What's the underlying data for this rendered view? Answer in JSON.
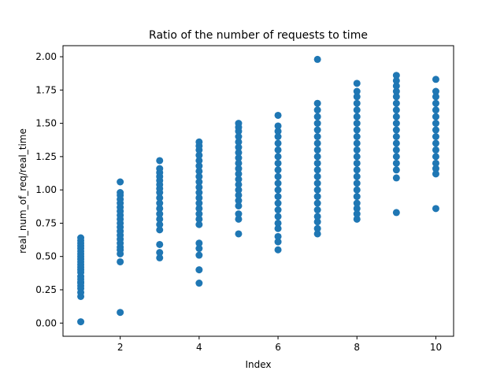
{
  "chart_data": {
    "type": "scatter",
    "title": "Ratio of the number of requests to time",
    "xlabel": "Index",
    "ylabel": "real_num_of_req/real_time",
    "xlim": [
      0.55,
      10.45
    ],
    "ylim": [
      -0.099,
      2.083
    ],
    "xticks": [
      2,
      4,
      6,
      8,
      10
    ],
    "yticks": [
      "0.00",
      "0.25",
      "0.50",
      "0.75",
      "1.00",
      "1.25",
      "1.50",
      "1.75",
      "2.00"
    ],
    "grid": false,
    "marker_color": "#1f77b4",
    "series": [
      {
        "points": [
          [
            1,
            0.01
          ],
          [
            1,
            0.2
          ],
          [
            1,
            0.23
          ],
          [
            1,
            0.26
          ],
          [
            1,
            0.28
          ],
          [
            1,
            0.3
          ],
          [
            1,
            0.31
          ],
          [
            1,
            0.33
          ],
          [
            1,
            0.35
          ],
          [
            1,
            0.38
          ],
          [
            1,
            0.4
          ],
          [
            1,
            0.42
          ],
          [
            1,
            0.44
          ],
          [
            1,
            0.46
          ],
          [
            1,
            0.48
          ],
          [
            1,
            0.5
          ],
          [
            1,
            0.52
          ],
          [
            1,
            0.54
          ],
          [
            1,
            0.56
          ],
          [
            1,
            0.58
          ],
          [
            1,
            0.6
          ],
          [
            1,
            0.62
          ],
          [
            1,
            0.64
          ],
          [
            2,
            0.08
          ],
          [
            2,
            0.46
          ],
          [
            2,
            0.52
          ],
          [
            2,
            0.55
          ],
          [
            2,
            0.57
          ],
          [
            2,
            0.6
          ],
          [
            2,
            0.63
          ],
          [
            2,
            0.66
          ],
          [
            2,
            0.69
          ],
          [
            2,
            0.72
          ],
          [
            2,
            0.75
          ],
          [
            2,
            0.78
          ],
          [
            2,
            0.81
          ],
          [
            2,
            0.84
          ],
          [
            2,
            0.87
          ],
          [
            2,
            0.9
          ],
          [
            2,
            0.93
          ],
          [
            2,
            0.96
          ],
          [
            2,
            0.98
          ],
          [
            2,
            1.06
          ],
          [
            3,
            0.49
          ],
          [
            3,
            0.53
          ],
          [
            3,
            0.59
          ],
          [
            3,
            0.7
          ],
          [
            3,
            0.74
          ],
          [
            3,
            0.78
          ],
          [
            3,
            0.82
          ],
          [
            3,
            0.86
          ],
          [
            3,
            0.9
          ],
          [
            3,
            0.94
          ],
          [
            3,
            0.98
          ],
          [
            3,
            1.01
          ],
          [
            3,
            1.04
          ],
          [
            3,
            1.07
          ],
          [
            3,
            1.1
          ],
          [
            3,
            1.13
          ],
          [
            3,
            1.16
          ],
          [
            3,
            1.22
          ],
          [
            4,
            0.3
          ],
          [
            4,
            0.4
          ],
          [
            4,
            0.51
          ],
          [
            4,
            0.56
          ],
          [
            4,
            0.6
          ],
          [
            4,
            0.74
          ],
          [
            4,
            0.78
          ],
          [
            4,
            0.82
          ],
          [
            4,
            0.86
          ],
          [
            4,
            0.9
          ],
          [
            4,
            0.94
          ],
          [
            4,
            0.98
          ],
          [
            4,
            1.02
          ],
          [
            4,
            1.06
          ],
          [
            4,
            1.1
          ],
          [
            4,
            1.14
          ],
          [
            4,
            1.18
          ],
          [
            4,
            1.22
          ],
          [
            4,
            1.26
          ],
          [
            4,
            1.3
          ],
          [
            4,
            1.33
          ],
          [
            4,
            1.36
          ],
          [
            5,
            0.67
          ],
          [
            5,
            0.78
          ],
          [
            5,
            0.82
          ],
          [
            5,
            0.88
          ],
          [
            5,
            0.92
          ],
          [
            5,
            0.96
          ],
          [
            5,
            1.0
          ],
          [
            5,
            1.04
          ],
          [
            5,
            1.08
          ],
          [
            5,
            1.12
          ],
          [
            5,
            1.16
          ],
          [
            5,
            1.2
          ],
          [
            5,
            1.24
          ],
          [
            5,
            1.28
          ],
          [
            5,
            1.32
          ],
          [
            5,
            1.36
          ],
          [
            5,
            1.4
          ],
          [
            5,
            1.44
          ],
          [
            5,
            1.47
          ],
          [
            5,
            1.5
          ],
          [
            6,
            0.55
          ],
          [
            6,
            0.61
          ],
          [
            6,
            0.65
          ],
          [
            6,
            0.71
          ],
          [
            6,
            0.75
          ],
          [
            6,
            0.8
          ],
          [
            6,
            0.85
          ],
          [
            6,
            0.9
          ],
          [
            6,
            0.95
          ],
          [
            6,
            1.0
          ],
          [
            6,
            1.05
          ],
          [
            6,
            1.1
          ],
          [
            6,
            1.15
          ],
          [
            6,
            1.2
          ],
          [
            6,
            1.25
          ],
          [
            6,
            1.3
          ],
          [
            6,
            1.35
          ],
          [
            6,
            1.4
          ],
          [
            6,
            1.44
          ],
          [
            6,
            1.48
          ],
          [
            6,
            1.56
          ],
          [
            7,
            0.67
          ],
          [
            7,
            0.71
          ],
          [
            7,
            0.76
          ],
          [
            7,
            0.8
          ],
          [
            7,
            0.85
          ],
          [
            7,
            0.9
          ],
          [
            7,
            0.95
          ],
          [
            7,
            1.0
          ],
          [
            7,
            1.05
          ],
          [
            7,
            1.1
          ],
          [
            7,
            1.15
          ],
          [
            7,
            1.2
          ],
          [
            7,
            1.25
          ],
          [
            7,
            1.3
          ],
          [
            7,
            1.35
          ],
          [
            7,
            1.4
          ],
          [
            7,
            1.45
          ],
          [
            7,
            1.5
          ],
          [
            7,
            1.55
          ],
          [
            7,
            1.6
          ],
          [
            7,
            1.65
          ],
          [
            7,
            1.98
          ],
          [
            8,
            0.78
          ],
          [
            8,
            0.82
          ],
          [
            8,
            0.86
          ],
          [
            8,
            0.9
          ],
          [
            8,
            0.95
          ],
          [
            8,
            1.0
          ],
          [
            8,
            1.05
          ],
          [
            8,
            1.1
          ],
          [
            8,
            1.15
          ],
          [
            8,
            1.2
          ],
          [
            8,
            1.25
          ],
          [
            8,
            1.3
          ],
          [
            8,
            1.35
          ],
          [
            8,
            1.4
          ],
          [
            8,
            1.45
          ],
          [
            8,
            1.5
          ],
          [
            8,
            1.55
          ],
          [
            8,
            1.6
          ],
          [
            8,
            1.65
          ],
          [
            8,
            1.7
          ],
          [
            8,
            1.74
          ],
          [
            8,
            1.8
          ],
          [
            9,
            0.83
          ],
          [
            9,
            1.09
          ],
          [
            9,
            1.15
          ],
          [
            9,
            1.2
          ],
          [
            9,
            1.25
          ],
          [
            9,
            1.3
          ],
          [
            9,
            1.35
          ],
          [
            9,
            1.4
          ],
          [
            9,
            1.45
          ],
          [
            9,
            1.5
          ],
          [
            9,
            1.55
          ],
          [
            9,
            1.6
          ],
          [
            9,
            1.65
          ],
          [
            9,
            1.7
          ],
          [
            9,
            1.74
          ],
          [
            9,
            1.78
          ],
          [
            9,
            1.82
          ],
          [
            9,
            1.86
          ],
          [
            10,
            0.86
          ],
          [
            10,
            1.12
          ],
          [
            10,
            1.16
          ],
          [
            10,
            1.2
          ],
          [
            10,
            1.25
          ],
          [
            10,
            1.3
          ],
          [
            10,
            1.35
          ],
          [
            10,
            1.4
          ],
          [
            10,
            1.45
          ],
          [
            10,
            1.5
          ],
          [
            10,
            1.55
          ],
          [
            10,
            1.6
          ],
          [
            10,
            1.65
          ],
          [
            10,
            1.7
          ],
          [
            10,
            1.74
          ],
          [
            10,
            1.83
          ]
        ]
      }
    ]
  }
}
